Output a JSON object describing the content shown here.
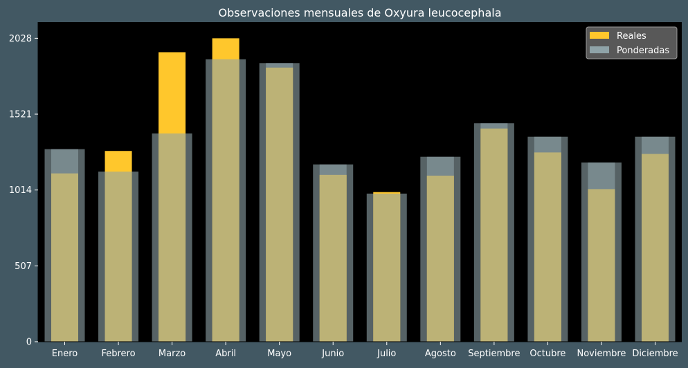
{
  "colors": {
    "background": "#425863",
    "plot_background": "#000000",
    "real": "#FFC72C",
    "weighted": "#8FA3A8",
    "text": "#FFFFFF"
  },
  "chart_data": {
    "type": "bar",
    "title": "Observaciones mensuales de Oxyura leucocephala",
    "xlabel": "",
    "ylabel": "",
    "ylim": [
      0,
      2136
    ],
    "yticks": [
      0,
      507,
      1014,
      1521,
      2028
    ],
    "grid": false,
    "legend_position": "top-right",
    "categories": [
      "Enero",
      "Febrero",
      "Marzo",
      "Abril",
      "Mayo",
      "Junio",
      "Julio",
      "Agosto",
      "Septiembre",
      "Octubre",
      "Noviembre",
      "Diciembre"
    ],
    "series": [
      {
        "name": "Reales",
        "values": [
          1125,
          1275,
          1935,
          2028,
          1832,
          1115,
          1000,
          1110,
          1425,
          1265,
          1020,
          1255
        ]
      },
      {
        "name": "Ponderadas",
        "values": [
          1287,
          1137,
          1392,
          1888,
          1862,
          1185,
          990,
          1236,
          1460,
          1370,
          1198,
          1370
        ]
      }
    ]
  }
}
